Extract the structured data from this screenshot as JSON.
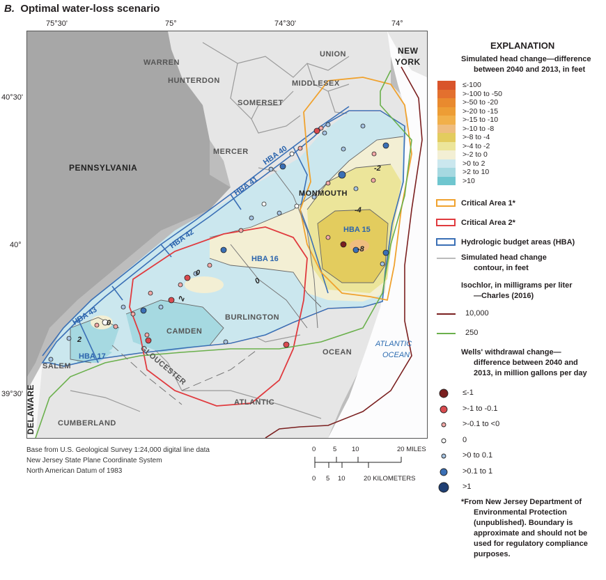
{
  "title": {
    "letter": "B.",
    "text": "Optimal water-loss scenario"
  },
  "map": {
    "lon_ticks": [
      "75°30'",
      "75°",
      "74°30'",
      "74°"
    ],
    "lat_ticks": [
      "40°30'",
      "40°",
      "39°30'"
    ],
    "counties": [
      "WARREN",
      "HUNTERDON",
      "SOMERSET",
      "UNION",
      "MIDDLESEX",
      "MERCER",
      "MONMOUTH",
      "BURLINGTON",
      "CAMDEN",
      "GLOUCESTER",
      "SALEM",
      "CUMBERLAND",
      "ATLANTIC",
      "OCEAN"
    ],
    "states": {
      "pennsylvania": "PENNSYLVANIA",
      "new_york_1": "NEW",
      "new_york_2": "YORK",
      "delaware": "DELAWARE"
    },
    "ocean": {
      "line1": "ATLANTIC",
      "line2": "OCEAN"
    },
    "hba_labels": [
      "HBA 40",
      "HBA 41",
      "HBA 42",
      "HBA 43",
      "HBA 15",
      "HBA 16",
      "HBA 17"
    ],
    "contour_labels": [
      "-2",
      "-4",
      "-8",
      "0",
      "0",
      "2",
      "0",
      "2"
    ]
  },
  "credits": [
    "Base from U.S. Geological Survey 1:24,000 digital line data",
    "New Jersey State Plane Coordinate System",
    "North American Datum of 1983"
  ],
  "scale": {
    "miles_ticks": [
      "0",
      "5",
      "10",
      "20 MILES"
    ],
    "km_ticks": [
      "0",
      "5",
      "10",
      "20 KILOMETERS"
    ]
  },
  "legend": {
    "title": "EXPLANATION",
    "head_change_title_1": "Simulated head change—difference",
    "head_change_title_2": "between 2040 and 2013, in feet",
    "head_classes": [
      {
        "label": "≤-100",
        "color": "#d9542b"
      },
      {
        "label": ">-100 to -50",
        "color": "#e3702e"
      },
      {
        "label": ">-50 to -20",
        "color": "#e98a2e"
      },
      {
        "label": ">-20 to -15",
        "color": "#ed9d35"
      },
      {
        "label": ">-15 to -10",
        "color": "#f1b04a"
      },
      {
        "label": ">-10 to -8",
        "color": "#efbd7f"
      },
      {
        "label": ">-8 to -4",
        "color": "#e3cc5e"
      },
      {
        "label": ">-4 to -2",
        "color": "#ece59a"
      },
      {
        "label": ">-2 to 0",
        "color": "#f3efd4"
      },
      {
        "label": ">0 to 2",
        "color": "#cbe7ee"
      },
      {
        "label": ">2 to 10",
        "color": "#a6d9e1"
      },
      {
        "label": ">10",
        "color": "#6fc6cf"
      }
    ],
    "critical_area_1": "Critical Area 1*",
    "critical_area_2": "Critical Area 2*",
    "hba": "Hydrologic budget areas (HBA)",
    "contour_1": "Simulated head change",
    "contour_2": "contour, in feet",
    "isochlor_title_1": "Isochlor, in milligrams per liter",
    "isochlor_title_2": "—Charles (2016)",
    "isochlor_10000": "10,000",
    "isochlor_250": "250",
    "wells_title_1": "Wells' withdrawal change—",
    "wells_title_2": "difference between 2040 and",
    "wells_title_3": "2013, in million gallons per day",
    "well_classes": [
      "≤-1",
      ">-1 to -0.1",
      ">-0.1 to <0",
      "0",
      ">0 to 0.1",
      ">0.1 to 1",
      ">1"
    ],
    "footnote": [
      "*From New Jersey Department of",
      "Environmental Protection",
      "(unpublished). Boundary is",
      "approximate and should not be",
      "used for regulatory compliance",
      "purposes."
    ],
    "colors": {
      "critical_area_1": "#f0a22e",
      "critical_area_2": "#e03a3e",
      "hba": "#3a6fb5",
      "isochlor_10000": "#7a1f1f",
      "isochlor_250": "#6ab04c"
    }
  }
}
